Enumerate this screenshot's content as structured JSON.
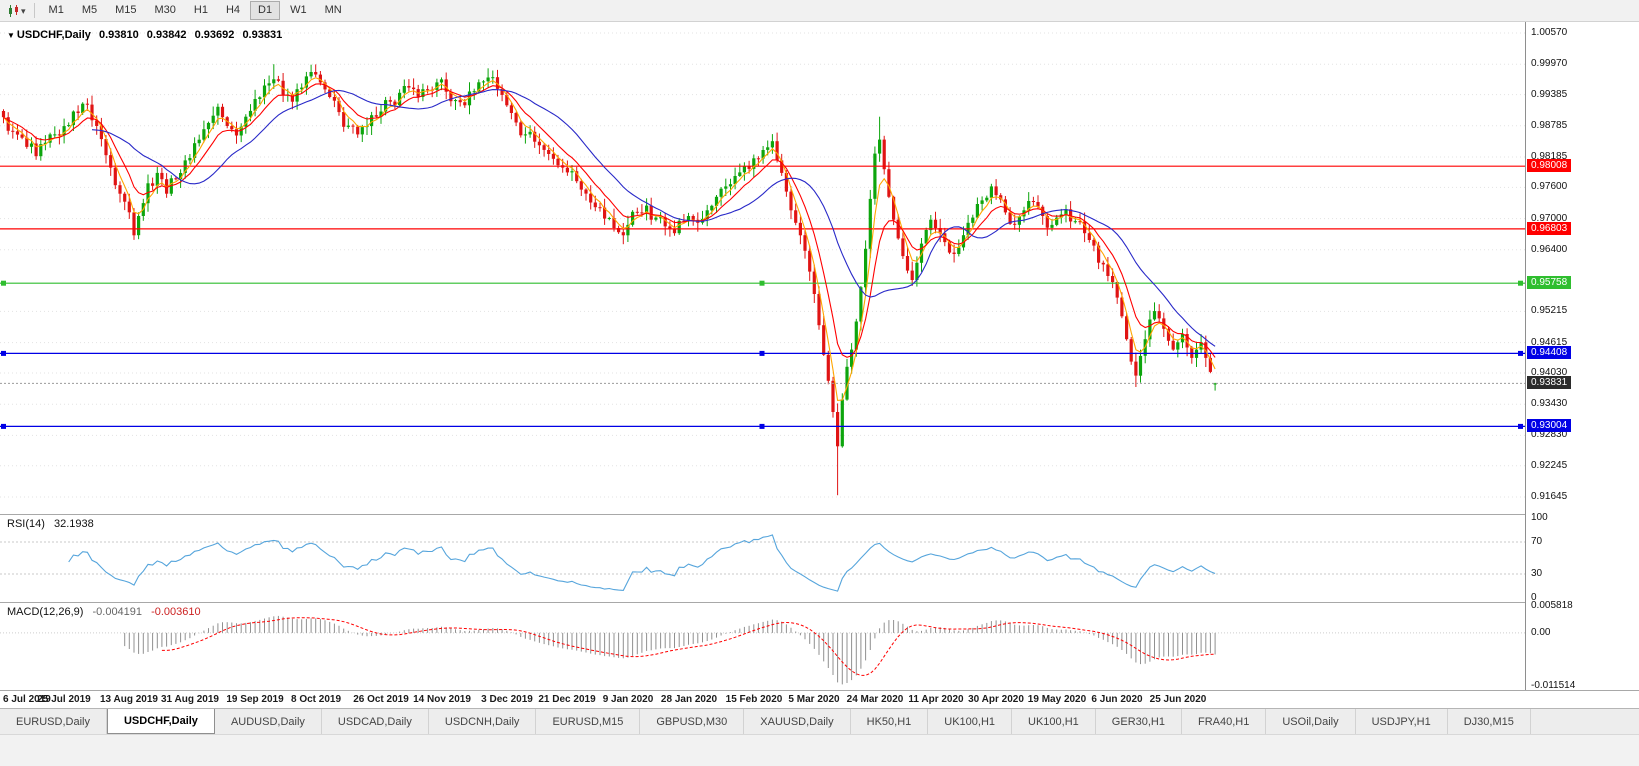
{
  "toolbar": {
    "timeframes": [
      "M1",
      "M5",
      "M15",
      "M30",
      "H1",
      "H4",
      "D1",
      "W1",
      "MN"
    ],
    "active_timeframe": "D1"
  },
  "chart_header": {
    "collapse_icon": "▼",
    "symbol": "USDCHF,Daily",
    "open": "0.93810",
    "high": "0.93842",
    "low": "0.93692",
    "close": "0.93831"
  },
  "tabs": {
    "active_index": 1,
    "items": [
      "EURUSD,Daily",
      "USDCHF,Daily",
      "AUDUSD,Daily",
      "USDCAD,Daily",
      "USDCNH,Daily",
      "EURUSD,M15",
      "GBPUSD,M30",
      "XAUUSD,Daily",
      "HK50,H1",
      "UK100,H1",
      "UK100,H1",
      "GER30,H1",
      "FRA40,H1",
      "USOil,Daily",
      "USDJPY,H1",
      "DJ30,M15"
    ]
  },
  "chart_data": {
    "type": "candlestick",
    "symbol": "USDCHF",
    "timeframe": "Daily",
    "bars_total": 261,
    "price_range": {
      "top": 1.00782,
      "bottom": 0.91318
    },
    "colors": {
      "up": "#0DA50D",
      "down": "#E01414"
    },
    "y_axis_ticks": [
      "1.00570",
      "0.99970",
      "0.99385",
      "0.98785",
      "0.98185",
      "0.97600",
      "0.97000",
      "0.96400",
      "0.95215",
      "0.94615",
      "0.94030",
      "0.93430",
      "0.92830",
      "0.92245",
      "0.91645"
    ],
    "levels": [
      {
        "price": 0.98008,
        "label": "0.98008",
        "color": "#FF0000",
        "handles": false
      },
      {
        "price": 0.96803,
        "label": "0.96803",
        "color": "#FF0000",
        "handles": false
      },
      {
        "price": 0.95758,
        "label": "0.95758",
        "color": "#2FBE2F",
        "handles": true
      },
      {
        "price": 0.94408,
        "label": "0.94408",
        "color": "#0000E6",
        "handles": true
      },
      {
        "price": 0.93004,
        "label": "0.93004",
        "color": "#0000E6",
        "handles": true
      }
    ],
    "current_price": {
      "value": 0.93831,
      "label": "0.93831",
      "badge_color": "#2B2B2B"
    },
    "moving_averages": [
      {
        "name": "ma-fast-orange",
        "period": 4,
        "method": "ema",
        "color": "#FFA500"
      },
      {
        "name": "ma-mid-red",
        "period": 9,
        "method": "ema",
        "color": "#FF0000"
      },
      {
        "name": "ma-slow-blue",
        "period": 20,
        "method": "sma",
        "color": "#2929C8"
      }
    ],
    "x_axis": {
      "labels": [
        "6 Jul 2019",
        "25 Jul 2019",
        "13 Aug 2019",
        "31 Aug 2019",
        "19 Sep 2019",
        "8 Oct 2019",
        "26 Oct 2019",
        "14 Nov 2019",
        "3 Dec 2019",
        "21 Dec 2019",
        "9 Jan 2020",
        "28 Jan 2020",
        "15 Feb 2020",
        "5 Mar 2020",
        "24 Mar 2020",
        "11 Apr 2020",
        "30 Apr 2020",
        "19 May 2020",
        "6 Jun 2020",
        "25 Jun 2020"
      ],
      "label_indices": [
        0,
        13,
        27,
        40,
        54,
        67,
        81,
        94,
        108,
        121,
        134,
        147,
        161,
        174,
        187,
        200,
        213,
        226,
        239,
        252
      ]
    },
    "rsi": {
      "label": "RSI(14)",
      "value_text": "32.1938",
      "period": 14,
      "ticks": [
        "100",
        "70",
        "30",
        "0"
      ],
      "level_lines": [
        70,
        30
      ],
      "color": "#56A5DC",
      "range": [
        0,
        100
      ]
    },
    "macd": {
      "label": "MACD(12,26,9)",
      "value_main": "-0.004191",
      "value_signal": "-0.003610",
      "fast": 12,
      "slow": 26,
      "signal": 9,
      "ticks": [
        "0.005818",
        "0.00",
        "-0.011514"
      ],
      "range": [
        -0.011514,
        0.005818
      ],
      "histogram_color": "#909090",
      "signal_color": "#FF0000"
    },
    "close_anchors": [
      [
        0,
        0.9895
      ],
      [
        2,
        0.9868
      ],
      [
        5,
        0.9838
      ],
      [
        7,
        0.982
      ],
      [
        9,
        0.9846
      ],
      [
        11,
        0.9862
      ],
      [
        13,
        0.9878
      ],
      [
        15,
        0.9906
      ],
      [
        17,
        0.9921
      ],
      [
        19,
        0.9889
      ],
      [
        21,
        0.9853
      ],
      [
        23,
        0.9798
      ],
      [
        25,
        0.9748
      ],
      [
        27,
        0.9712
      ],
      [
        28,
        0.9668
      ],
      [
        29,
        0.9705
      ],
      [
        31,
        0.9768
      ],
      [
        33,
        0.9788
      ],
      [
        35,
        0.9748
      ],
      [
        37,
        0.9776
      ],
      [
        39,
        0.9812
      ],
      [
        41,
        0.9845
      ],
      [
        43,
        0.9872
      ],
      [
        45,
        0.9898
      ],
      [
        46,
        0.9915
      ],
      [
        48,
        0.9878
      ],
      [
        50,
        0.986
      ],
      [
        52,
        0.9896
      ],
      [
        54,
        0.993
      ],
      [
        56,
        0.9956
      ],
      [
        58,
        0.9968
      ],
      [
        60,
        0.9938
      ],
      [
        62,
        0.9925
      ],
      [
        64,
        0.9952
      ],
      [
        66,
        0.9982
      ],
      [
        68,
        0.9962
      ],
      [
        70,
        0.9934
      ],
      [
        72,
        0.9905
      ],
      [
        74,
        0.9879
      ],
      [
        76,
        0.9862
      ],
      [
        78,
        0.9878
      ],
      [
        80,
        0.9896
      ],
      [
        81,
        0.9906
      ],
      [
        83,
        0.9925
      ],
      [
        85,
        0.9942
      ],
      [
        87,
        0.9952
      ],
      [
        89,
        0.9934
      ],
      [
        91,
        0.9948
      ],
      [
        93,
        0.9962
      ],
      [
        95,
        0.9944
      ],
      [
        97,
        0.9928
      ],
      [
        99,
        0.9918
      ],
      [
        101,
        0.9945
      ],
      [
        103,
        0.9964
      ],
      [
        105,
        0.9972
      ],
      [
        107,
        0.9938
      ],
      [
        108,
        0.9918
      ],
      [
        110,
        0.9885
      ],
      [
        112,
        0.9862
      ],
      [
        114,
        0.9848
      ],
      [
        116,
        0.9832
      ],
      [
        118,
        0.9815
      ],
      [
        120,
        0.9798
      ],
      [
        121,
        0.9789
      ],
      [
        123,
        0.9772
      ],
      [
        125,
        0.9748
      ],
      [
        127,
        0.9722
      ],
      [
        129,
        0.97
      ],
      [
        131,
        0.9682
      ],
      [
        133,
        0.9668
      ],
      [
        134,
        0.9688
      ],
      [
        136,
        0.9712
      ],
      [
        138,
        0.9725
      ],
      [
        140,
        0.9702
      ],
      [
        142,
        0.9685
      ],
      [
        144,
        0.9672
      ],
      [
        146,
        0.9695
      ],
      [
        147,
        0.9705
      ],
      [
        149,
        0.9692
      ],
      [
        151,
        0.9716
      ],
      [
        153,
        0.9742
      ],
      [
        155,
        0.9762
      ],
      [
        157,
        0.9782
      ],
      [
        159,
        0.9801
      ],
      [
        161,
        0.9816
      ],
      [
        163,
        0.9832
      ],
      [
        165,
        0.9849
      ],
      [
        166,
        0.9812
      ],
      [
        167,
        0.9788
      ],
      [
        168,
        0.9752
      ],
      [
        169,
        0.9716
      ],
      [
        170,
        0.9692
      ],
      [
        171,
        0.9668
      ],
      [
        172,
        0.9638
      ],
      [
        173,
        0.9598
      ],
      [
        174,
        0.9555
      ],
      [
        175,
        0.9495
      ],
      [
        176,
        0.9438
      ],
      [
        177,
        0.9388
      ],
      [
        178,
        0.9328
      ],
      [
        179,
        0.9262
      ],
      [
        180,
        0.9352
      ],
      [
        181,
        0.9415
      ],
      [
        182,
        0.9448
      ],
      [
        183,
        0.9502
      ],
      [
        184,
        0.9568
      ],
      [
        185,
        0.9642
      ],
      [
        186,
        0.9738
      ],
      [
        187,
        0.9825
      ],
      [
        188,
        0.9852
      ],
      [
        189,
        0.9795
      ],
      [
        190,
        0.9742
      ],
      [
        191,
        0.9698
      ],
      [
        192,
        0.9662
      ],
      [
        193,
        0.9628
      ],
      [
        194,
        0.96
      ],
      [
        195,
        0.9582
      ],
      [
        196,
        0.9615
      ],
      [
        197,
        0.9652
      ],
      [
        198,
        0.9678
      ],
      [
        199,
        0.9698
      ],
      [
        200,
        0.9682
      ],
      [
        202,
        0.9655
      ],
      [
        204,
        0.9632
      ],
      [
        206,
        0.9668
      ],
      [
        208,
        0.9702
      ],
      [
        210,
        0.9735
      ],
      [
        212,
        0.9762
      ],
      [
        213,
        0.9745
      ],
      [
        215,
        0.9712
      ],
      [
        217,
        0.9688
      ],
      [
        219,
        0.9716
      ],
      [
        221,
        0.9732
      ],
      [
        223,
        0.9705
      ],
      [
        225,
        0.9688
      ],
      [
        226,
        0.9702
      ],
      [
        228,
        0.9718
      ],
      [
        230,
        0.9695
      ],
      [
        232,
        0.9672
      ],
      [
        234,
        0.9648
      ],
      [
        236,
        0.9612
      ],
      [
        238,
        0.9578
      ],
      [
        239,
        0.9548
      ],
      [
        240,
        0.9512
      ],
      [
        241,
        0.9468
      ],
      [
        242,
        0.9425
      ],
      [
        243,
        0.9398
      ],
      [
        244,
        0.9436
      ],
      [
        245,
        0.9468
      ],
      [
        246,
        0.9506
      ],
      [
        247,
        0.9522
      ],
      [
        248,
        0.9508
      ],
      [
        249,
        0.9488
      ],
      [
        250,
        0.9465
      ],
      [
        251,
        0.9448
      ],
      [
        252,
        0.9462
      ],
      [
        253,
        0.9478
      ],
      [
        254,
        0.9452
      ],
      [
        255,
        0.9432
      ],
      [
        256,
        0.9448
      ],
      [
        257,
        0.9462
      ],
      [
        258,
        0.9432
      ],
      [
        259,
        0.9405
      ],
      [
        260,
        0.9383
      ]
    ],
    "ohlc_overrides": {
      "28": {
        "low": 0.9659
      },
      "58": {
        "high": 0.9997
      },
      "66": {
        "high": 0.9996
      },
      "179": {
        "low": 0.9168
      },
      "188": {
        "high": 0.9896
      },
      "243": {
        "low": 0.9376
      },
      "260": {
        "open": 0.9381,
        "high": 0.93842,
        "low": 0.93692,
        "close": 0.93831
      }
    }
  }
}
